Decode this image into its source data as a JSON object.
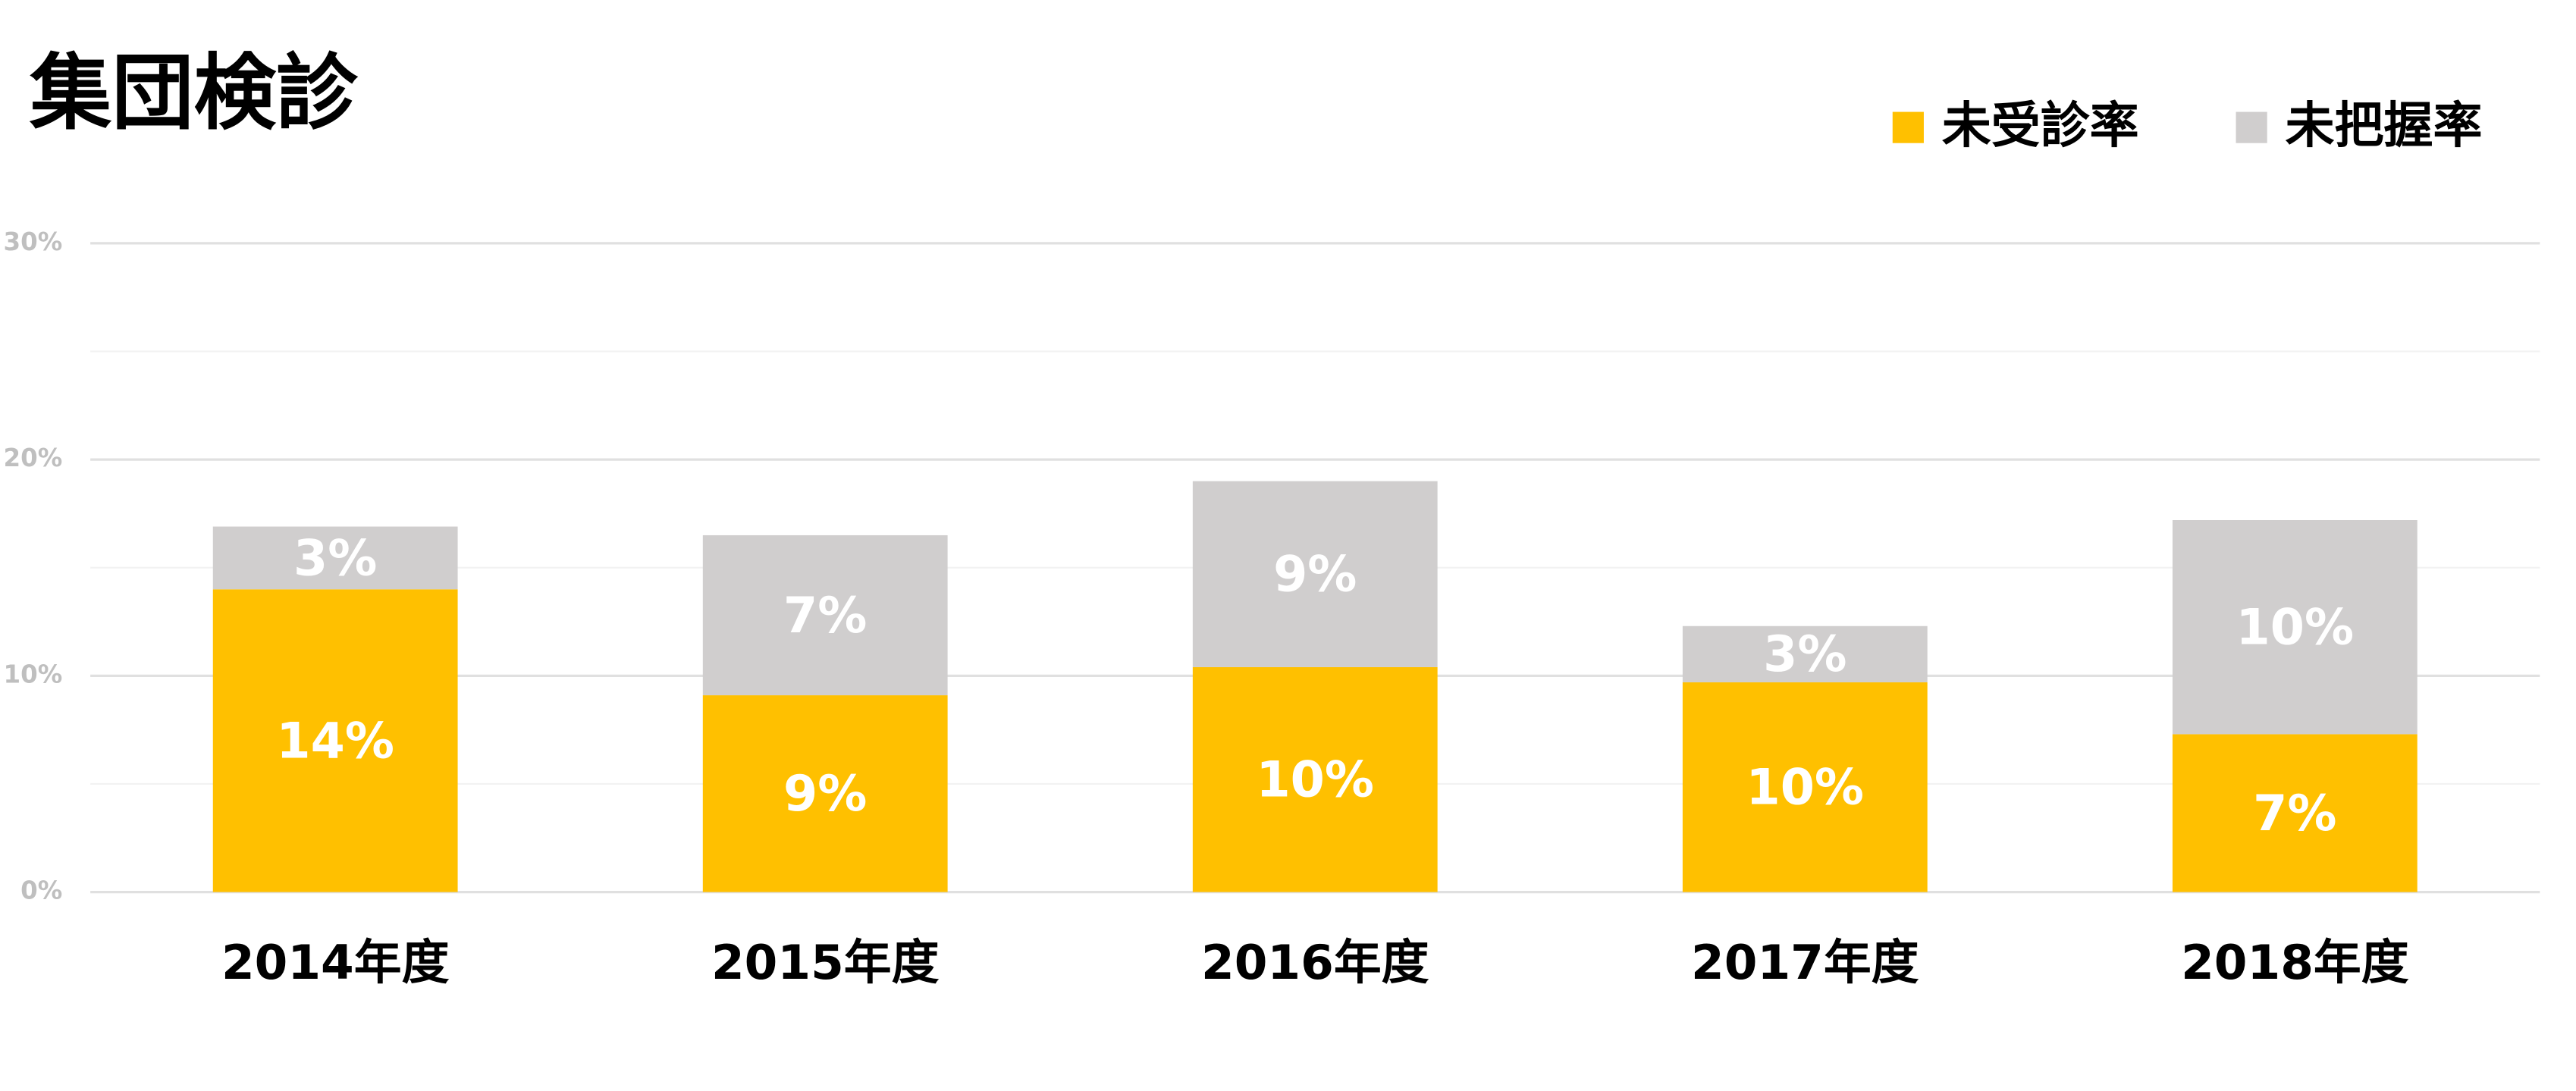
{
  "chart_data": {
    "type": "stacked_bar",
    "title": "集団検診",
    "categories": [
      "2014年度",
      "2015年度",
      "2016年度",
      "2017年度",
      "2018年度"
    ],
    "series": [
      {
        "name": "未受診率",
        "color": "#ffc000",
        "values": [
          14.0,
          9.1,
          10.4,
          9.7,
          7.3
        ],
        "value_labels": [
          "14%",
          "9%",
          "10%",
          "10%",
          "7%"
        ]
      },
      {
        "name": "未把握率",
        "color": "#d0cece",
        "values": [
          2.9,
          7.4,
          8.6,
          2.6,
          9.9
        ],
        "value_labels": [
          "3%",
          "7%",
          "9%",
          "3%",
          "10%"
        ]
      }
    ],
    "ylim": [
      0,
      30
    ],
    "yticks": [
      {
        "value": 0,
        "label": "0%"
      },
      {
        "value": 10,
        "label": "10%"
      },
      {
        "value": 20,
        "label": "20%"
      },
      {
        "value": 30,
        "label": "30%"
      }
    ],
    "minor_yticks": [
      5,
      15,
      25
    ],
    "grid": true,
    "legend": "top-right"
  }
}
